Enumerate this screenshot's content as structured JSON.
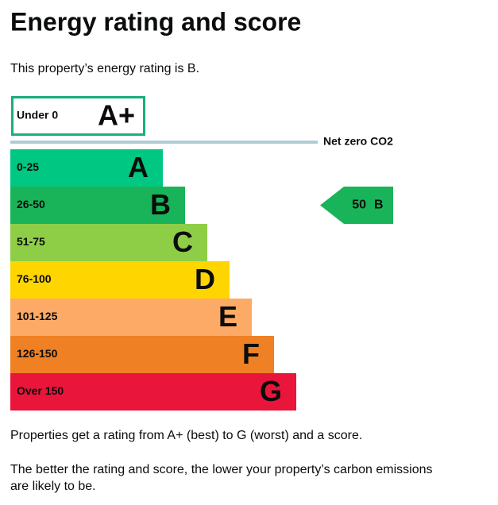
{
  "header": {
    "title": "Energy rating and score",
    "intro": "This property’s energy rating is B."
  },
  "top_band": {
    "range": "Under 0",
    "letter": "A+",
    "color": "#1aae7d"
  },
  "net_zero": {
    "label": "Net zero CO2",
    "color": "#b1cdd3"
  },
  "bands": [
    {
      "range": "0-25",
      "letter": "A",
      "color": "#00c781"
    },
    {
      "range": "26-50",
      "letter": "B",
      "color": "#19b459"
    },
    {
      "range": "51-75",
      "letter": "C",
      "color": "#8dce46"
    },
    {
      "range": "76-100",
      "letter": "D",
      "color": "#ffd500"
    },
    {
      "range": "101-125",
      "letter": "E",
      "color": "#fcaa65"
    },
    {
      "range": "126-150",
      "letter": "F",
      "color": "#ef8023"
    },
    {
      "range": "Over 150",
      "letter": "G",
      "color": "#e9153b"
    }
  ],
  "current": {
    "score": 50,
    "letter": "B"
  },
  "footer": {
    "line1": "Properties get a rating from A+ (best) to G (worst) and a score.",
    "line2a": "The better the rating and score, the lower your property’s carbon emissions",
    "line2b": "are likely to be."
  }
}
